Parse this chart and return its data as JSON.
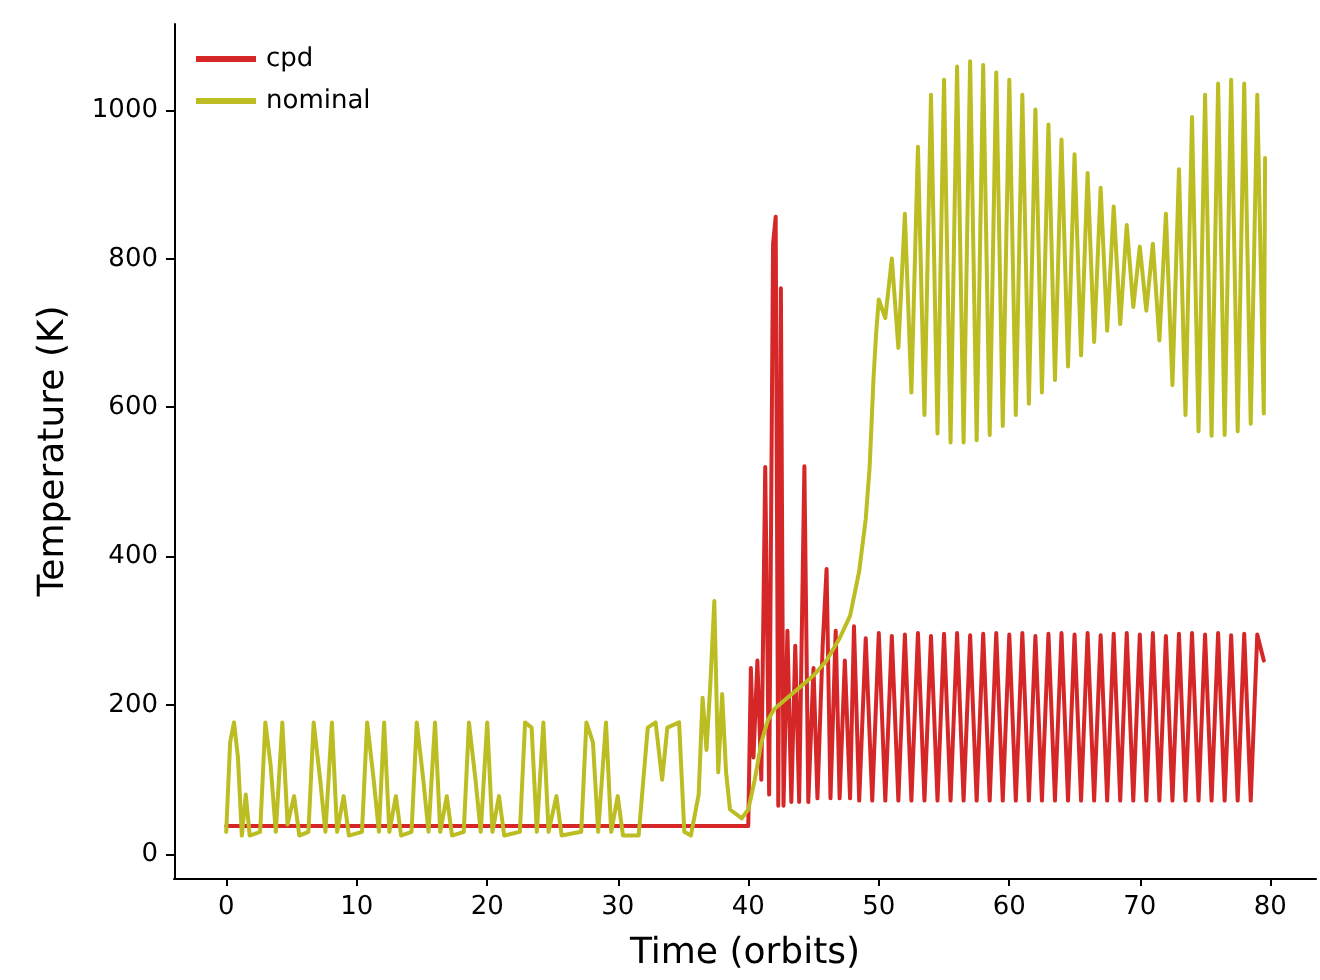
{
  "chart_data": {
    "type": "line",
    "xlabel": "Time (orbits)",
    "ylabel": "Temperature (K)",
    "xlim": [
      -4,
      83.5
    ],
    "ylim": [
      -32,
      1115
    ],
    "xticks": [
      0,
      10,
      20,
      30,
      40,
      50,
      60,
      70,
      80
    ],
    "yticks": [
      0,
      200,
      400,
      600,
      800,
      1000
    ],
    "grid": false,
    "legend": "top left",
    "marker": "none",
    "line_style": "solid",
    "series": [
      {
        "name": "cpd",
        "color": "#d62728",
        "x": [
          0,
          40,
          40.2,
          40.4,
          40.7,
          41.0,
          41.3,
          41.6,
          41.9,
          42.1,
          42.3,
          42.5,
          42.7,
          43.0,
          43.3,
          43.6,
          43.9,
          44.3,
          44.6,
          45.0,
          45.3,
          45.7,
          46.0,
          46.3,
          46.7,
          47.0,
          47.4,
          47.8,
          48.1,
          48.5,
          49.0,
          49.5,
          50.0,
          50.5,
          51.0,
          51.5,
          52.0,
          52.5,
          53.0,
          53.5,
          54.0,
          54.5,
          55.0,
          55.5,
          56.0,
          56.5,
          57.0,
          57.5,
          58.0,
          58.5,
          59.0,
          59.5,
          60.0,
          60.5,
          61.0,
          61.5,
          62.0,
          62.5,
          63.0,
          63.5,
          64.0,
          64.5,
          65.0,
          65.5,
          66.0,
          66.5,
          67.0,
          67.5,
          68.0,
          68.5,
          69.0,
          69.5,
          70.0,
          70.5,
          71.0,
          71.5,
          72.0,
          72.5,
          73.0,
          73.5,
          74.0,
          74.5,
          75.0,
          75.5,
          76.0,
          76.5,
          77.0,
          77.5,
          78.0,
          78.5,
          79.0,
          79.5
        ],
        "values": [
          38,
          38,
          250,
          130,
          260,
          100,
          520,
          80,
          820,
          856,
          65,
          760,
          65,
          300,
          70,
          280,
          70,
          521,
          70,
          250,
          75,
          280,
          383,
          75,
          300,
          75,
          260,
          75,
          306,
          72,
          290,
          72,
          297,
          72,
          293,
          72,
          295,
          72,
          297,
          72,
          293,
          72,
          296,
          72,
          297,
          72,
          294,
          72,
          296,
          72,
          297,
          72,
          295,
          72,
          297,
          72,
          293,
          72,
          296,
          72,
          297,
          72,
          295,
          72,
          297,
          72,
          294,
          72,
          296,
          72,
          297,
          72,
          295,
          72,
          297,
          72,
          293,
          72,
          296,
          72,
          297,
          72,
          295,
          72,
          297,
          72,
          294,
          72,
          296,
          72,
          295,
          260
        ]
      },
      {
        "name": "nominal",
        "color": "#bcbd22",
        "x": [
          0,
          0.3,
          0.6,
          0.9,
          1.2,
          1.5,
          1.8,
          2.6,
          3.0,
          3.4,
          3.8,
          4.3,
          4.7,
          5.2,
          5.6,
          6.3,
          6.7,
          7.2,
          7.6,
          8.1,
          8.5,
          9.0,
          9.4,
          10.4,
          10.8,
          11.3,
          11.7,
          12.1,
          12.5,
          13.0,
          13.4,
          14.2,
          14.6,
          15.1,
          15.5,
          16.0,
          16.4,
          16.9,
          17.3,
          18.2,
          18.6,
          19.1,
          19.5,
          20.0,
          20.4,
          20.9,
          21.3,
          22.5,
          22.9,
          23.4,
          23.8,
          24.3,
          24.7,
          25.3,
          25.7,
          27.2,
          27.6,
          28.1,
          28.5,
          29.1,
          29.5,
          30.0,
          30.4,
          31.6,
          32.3,
          32.9,
          33.4,
          33.8,
          34.7,
          35.1,
          35.6,
          36.2,
          36.5,
          36.8,
          37.1,
          37.4,
          37.7,
          38.0,
          38.3,
          38.6,
          39.5,
          40.0,
          40.5,
          41.0,
          41.5,
          42.0,
          43.0,
          44.0,
          45.0,
          46.0,
          47.0,
          47.8,
          48.5,
          49.0,
          49.3,
          49.6,
          49.8,
          50.0,
          50.5,
          51.0,
          51.5,
          52.0,
          52.5,
          53.0,
          53.5,
          54.0,
          54.5,
          55.0,
          55.5,
          56.0,
          56.5,
          57.0,
          57.5,
          58.0,
          58.5,
          59.0,
          59.5,
          60.0,
          60.5,
          61.0,
          61.5,
          62.0,
          62.5,
          63.0,
          63.5,
          64.0,
          64.5,
          65.0,
          65.5,
          66.0,
          66.5,
          67.0,
          67.5,
          68.0,
          68.5,
          69.0,
          69.5,
          70.0,
          70.5,
          71.0,
          71.5,
          72.0,
          72.5,
          73.0,
          73.5,
          74.0,
          74.5,
          75.0,
          75.5,
          76.0,
          76.5,
          77.0,
          77.5,
          78.0,
          78.5,
          79.0,
          79.5,
          79.6
        ],
        "values": [
          30,
          150,
          177,
          130,
          25,
          80,
          25,
          30,
          177,
          120,
          30,
          177,
          40,
          78,
          25,
          30,
          177,
          100,
          30,
          177,
          30,
          78,
          25,
          30,
          177,
          100,
          30,
          177,
          30,
          78,
          25,
          30,
          177,
          100,
          30,
          177,
          30,
          78,
          25,
          30,
          177,
          100,
          30,
          177,
          30,
          78,
          25,
          30,
          177,
          170,
          30,
          177,
          30,
          78,
          25,
          30,
          177,
          150,
          30,
          177,
          30,
          78,
          25,
          25,
          170,
          177,
          100,
          170,
          177,
          30,
          25,
          80,
          210,
          140,
          230,
          340,
          110,
          215,
          110,
          60,
          48,
          60,
          100,
          150,
          180,
          195,
          210,
          225,
          240,
          260,
          290,
          320,
          380,
          450,
          520,
          640,
          700,
          745,
          720,
          800,
          680,
          860,
          620,
          950,
          590,
          1020,
          565,
          1040,
          553,
          1058,
          553,
          1065,
          556,
          1060,
          563,
          1050,
          575,
          1040,
          590,
          1020,
          605,
          1000,
          620,
          980,
          637,
          960,
          655,
          940,
          670,
          915,
          688,
          895,
          703,
          870,
          712,
          845,
          735,
          816,
          730,
          820,
          690,
          860,
          630,
          920,
          590,
          990,
          568,
          1020,
          562,
          1035,
          563,
          1040,
          568,
          1035,
          578,
          1020,
          592,
          935
        ]
      }
    ]
  }
}
